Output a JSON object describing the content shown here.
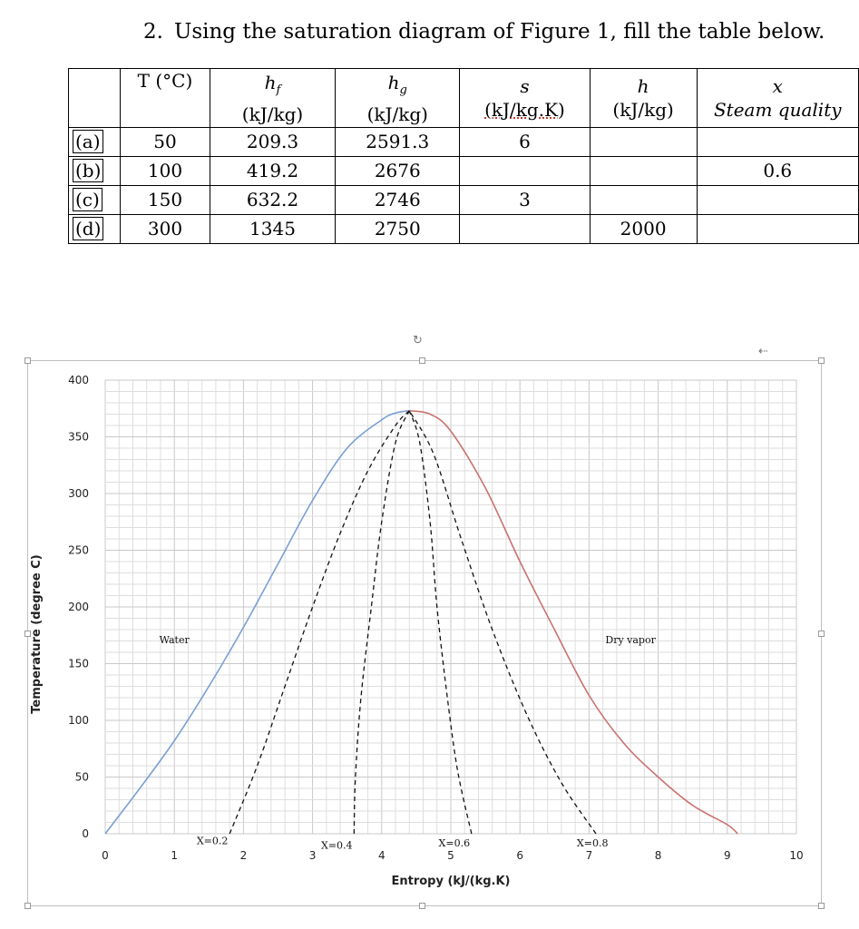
{
  "question": {
    "number": "2.",
    "text": "Using the saturation diagram of Figure 1, fill the table below."
  },
  "table": {
    "headers": [
      {
        "top": "",
        "bottom": ""
      },
      {
        "top": "T (°C)",
        "bottom": ""
      },
      {
        "top": "hf",
        "bottom": "(kJ/kg)"
      },
      {
        "top": "hg",
        "bottom": "(kJ/kg)"
      },
      {
        "top": "s",
        "bottom": "(kJ/kg.K)"
      },
      {
        "top": "h",
        "bottom": "(kJ/kg)"
      },
      {
        "top": "x",
        "bottom": "Steam quality"
      }
    ],
    "rows": [
      {
        "label": "(a)",
        "T": "50",
        "hf": "209.3",
        "hg": "2591.3",
        "s": "6",
        "h": "",
        "x": ""
      },
      {
        "label": "(b)",
        "T": "100",
        "hf": "419.2",
        "hg": "2676",
        "s": "",
        "h": "",
        "x": "0.6"
      },
      {
        "label": "(c)",
        "T": "150",
        "hf": "632.2",
        "hg": "2746",
        "s": "3",
        "h": "",
        "x": ""
      },
      {
        "label": "(d)",
        "T": "300",
        "hf": "1345",
        "hg": "2750",
        "s": "",
        "h": "2000",
        "x": ""
      }
    ]
  },
  "chart_data": {
    "type": "line",
    "xlabel": "Entropy (kJ/(kg.K)",
    "ylabel": "Temperature (degree C)",
    "xlim": [
      0,
      10
    ],
    "ylim": [
      0,
      400
    ],
    "x_ticks": [
      0,
      1,
      2,
      3,
      4,
      5,
      6,
      7,
      8,
      9,
      10
    ],
    "y_ticks": [
      0,
      50,
      100,
      150,
      200,
      250,
      300,
      350,
      400
    ],
    "grid": true,
    "series": [
      {
        "style": "solid",
        "color": "#7a9fd4",
        "x": [
          0,
          0.5,
          1.0,
          1.5,
          2.0,
          2.5,
          3.0,
          3.5,
          4.0,
          4.2,
          4.4
        ],
        "y": [
          0,
          40,
          82,
          130,
          182,
          238,
          294,
          340,
          365,
          371,
          373
        ]
      },
      {
        "style": "solid",
        "color": "#c9726f",
        "x": [
          4.4,
          4.7,
          5.0,
          5.5,
          6.0,
          6.5,
          7.0,
          7.5,
          8.0,
          8.5,
          9.0,
          9.15
        ],
        "y": [
          373,
          370,
          355,
          305,
          240,
          180,
          122,
          80,
          50,
          25,
          8,
          0
        ]
      },
      {
        "style": "dashed",
        "color": "#111111",
        "x": [
          1.8,
          2.2,
          2.6,
          3.0,
          3.4,
          3.8,
          4.2,
          4.4
        ],
        "y": [
          0,
          60,
          130,
          200,
          265,
          320,
          360,
          373
        ]
      },
      {
        "style": "dashed",
        "color": "#111111",
        "x": [
          3.6,
          3.62,
          3.7,
          3.85,
          4.0,
          4.2,
          4.4
        ],
        "y": [
          0,
          50,
          120,
          200,
          275,
          345,
          373
        ]
      },
      {
        "style": "dashed",
        "color": "#111111",
        "x": [
          5.3,
          5.1,
          4.95,
          4.8,
          4.7,
          4.55,
          4.4
        ],
        "y": [
          0,
          55,
          120,
          200,
          275,
          345,
          373
        ]
      },
      {
        "style": "dashed",
        "color": "#111111",
        "x": [
          7.1,
          6.6,
          6.1,
          5.6,
          5.15,
          4.75,
          4.4
        ],
        "y": [
          0,
          45,
          105,
          180,
          260,
          335,
          373
        ]
      }
    ],
    "annotations": [
      {
        "text": "Water",
        "x": 1.0,
        "y": 168
      },
      {
        "text": "Dry vapor",
        "x": 7.6,
        "y": 168
      },
      {
        "text": "X=0.2",
        "x": 1.55,
        "y": -9
      },
      {
        "text": "X=0.4",
        "x": 3.35,
        "y": -13
      },
      {
        "text": "X=0.6",
        "x": 5.05,
        "y": -11
      },
      {
        "text": "X=0.8",
        "x": 7.05,
        "y": -11
      }
    ]
  }
}
